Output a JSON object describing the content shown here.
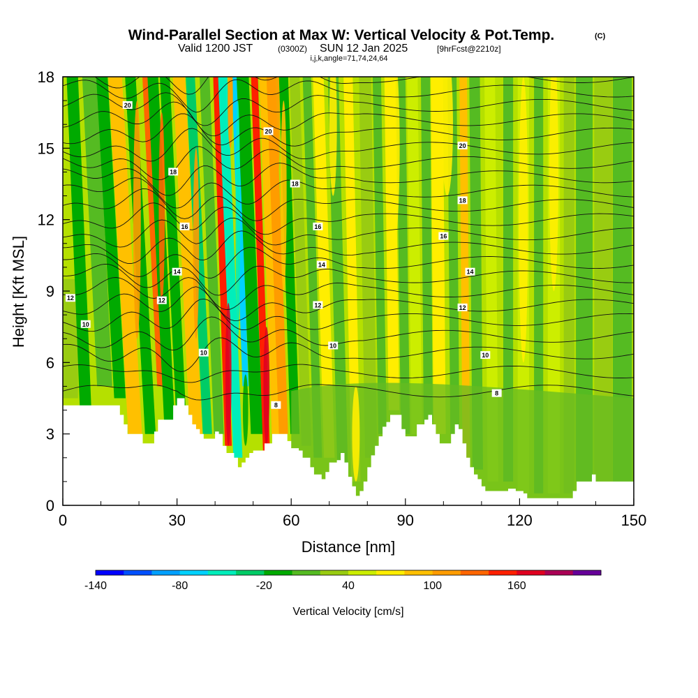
{
  "chart_data": {
    "type": "heatmap",
    "title": "Wind-Parallel Section at Max W: Vertical Velocity & Pot.Temp.",
    "title_mark": "(C)",
    "subtitle_a": "Valid 1200 JST",
    "subtitle_b": "(0300Z)",
    "subtitle_c": "SUN 12 Jan 2025",
    "subtitle_d": "[9hrFcst@2210z]",
    "subtitle_e": "i,j,k,angle=71,74,24,64",
    "xlabel": "Distance [nm]",
    "ylabel": "Height [Kft MSL]",
    "xlim": [
      0,
      150
    ],
    "ylim": [
      0,
      18
    ],
    "x_ticks": [
      "0",
      "30",
      "60",
      "90",
      "120",
      "150"
    ],
    "y_ticks": [
      "0",
      "3",
      "6",
      "9",
      "12",
      "15",
      "18"
    ],
    "colorbar": {
      "label": "Vertical Velocity [cm/s]",
      "min": -140,
      "step": 20,
      "tick_labels": [
        "-140",
        "-80",
        "-20",
        "40",
        "100",
        "160"
      ],
      "colors": [
        "#0000ff",
        "#0050ff",
        "#00a0ff",
        "#00d2ff",
        "#00eebb",
        "#00cc66",
        "#00aa00",
        "#55bb22",
        "#99cc11",
        "#ccee00",
        "#ffee00",
        "#ffc000",
        "#ff9c00",
        "#ff6600",
        "#ff2000",
        "#e00020",
        "#aa0055",
        "#660099"
      ]
    },
    "contour_labels": [
      {
        "text": "20",
        "x": 17,
        "y": 16.8
      },
      {
        "text": "20",
        "x": 54,
        "y": 15.7
      },
      {
        "text": "20",
        "x": 105,
        "y": 15.1
      },
      {
        "text": "18",
        "x": 29,
        "y": 14.0
      },
      {
        "text": "18",
        "x": 61,
        "y": 13.5
      },
      {
        "text": "18",
        "x": 105,
        "y": 12.8
      },
      {
        "text": "16",
        "x": 32,
        "y": 11.7
      },
      {
        "text": "16",
        "x": 67,
        "y": 11.7
      },
      {
        "text": "16",
        "x": 100,
        "y": 11.3
      },
      {
        "text": "14",
        "x": 30,
        "y": 9.8
      },
      {
        "text": "14",
        "x": 68,
        "y": 10.1
      },
      {
        "text": "14",
        "x": 107,
        "y": 9.8
      },
      {
        "text": "12",
        "x": 2,
        "y": 8.7
      },
      {
        "text": "12",
        "x": 26,
        "y": 8.6
      },
      {
        "text": "12",
        "x": 67,
        "y": 8.4
      },
      {
        "text": "12",
        "x": 105,
        "y": 8.3
      },
      {
        "text": "10",
        "x": 6,
        "y": 7.6
      },
      {
        "text": "10",
        "x": 37,
        "y": 6.4
      },
      {
        "text": "10",
        "x": 71,
        "y": 6.7
      },
      {
        "text": "10",
        "x": 111,
        "y": 6.3
      },
      {
        "text": "8",
        "x": 56,
        "y": 4.2
      },
      {
        "text": "8",
        "x": 114,
        "y": 4.7
      }
    ],
    "terrain_height": [
      [
        0,
        4.2
      ],
      [
        8,
        4.2
      ],
      [
        14,
        4.2
      ],
      [
        15,
        3.8
      ],
      [
        16,
        3.4
      ],
      [
        17,
        3.0
      ],
      [
        20,
        3.0
      ],
      [
        21,
        2.6
      ],
      [
        23,
        2.6
      ],
      [
        24,
        3.1
      ],
      [
        25,
        3.6
      ],
      [
        27,
        3.6
      ],
      [
        29,
        4.2
      ],
      [
        30,
        4.5
      ],
      [
        32,
        4.2
      ],
      [
        33,
        3.8
      ],
      [
        34,
        3.4
      ],
      [
        35,
        3.2
      ],
      [
        36,
        3.0
      ],
      [
        37,
        2.8
      ],
      [
        39,
        2.8
      ],
      [
        40,
        3.1
      ],
      [
        41,
        3.0
      ],
      [
        42,
        2.5
      ],
      [
        43,
        2.2
      ],
      [
        45,
        2.0
      ],
      [
        46,
        1.6
      ],
      [
        47,
        1.8
      ],
      [
        48,
        2.0
      ],
      [
        49,
        2.2
      ],
      [
        50,
        2.3
      ],
      [
        52,
        2.3
      ],
      [
        53,
        2.6
      ],
      [
        55,
        3.0
      ],
      [
        58,
        3.0
      ],
      [
        59,
        2.7
      ],
      [
        60,
        2.4
      ],
      [
        62,
        2.3
      ],
      [
        63,
        2.0
      ],
      [
        65,
        1.6
      ],
      [
        66,
        1.3
      ],
      [
        68,
        1.1
      ],
      [
        69,
        1.4
      ],
      [
        70,
        1.8
      ],
      [
        72,
        1.9
      ],
      [
        73,
        2.2
      ],
      [
        74,
        1.8
      ],
      [
        75,
        1.2
      ],
      [
        76,
        0.8
      ],
      [
        77,
        0.4
      ],
      [
        78,
        0.6
      ],
      [
        79,
        1.0
      ],
      [
        80,
        1.6
      ],
      [
        81,
        2.1
      ],
      [
        82,
        2.5
      ],
      [
        83,
        2.9
      ],
      [
        84,
        3.3
      ],
      [
        85,
        3.5
      ],
      [
        86,
        3.8
      ],
      [
        88,
        3.8
      ],
      [
        89,
        3.2
      ],
      [
        90,
        2.9
      ],
      [
        92,
        2.9
      ],
      [
        93,
        3.4
      ],
      [
        95,
        3.6
      ],
      [
        96,
        3.8
      ],
      [
        97,
        3.4
      ],
      [
        98,
        3.0
      ],
      [
        99,
        2.6
      ],
      [
        101,
        2.6
      ],
      [
        102,
        3.0
      ],
      [
        103,
        3.4
      ],
      [
        104,
        3.2
      ],
      [
        105,
        2.6
      ],
      [
        106,
        2.0
      ],
      [
        107,
        1.6
      ],
      [
        108,
        1.3
      ],
      [
        109,
        1.1
      ],
      [
        110,
        0.8
      ],
      [
        111,
        0.6
      ],
      [
        114,
        0.6
      ],
      [
        117,
        0.7
      ],
      [
        119,
        0.6
      ],
      [
        121,
        0.5
      ],
      [
        122,
        0.3
      ],
      [
        133,
        0.3
      ],
      [
        134,
        0.6
      ],
      [
        135,
        1.0
      ],
      [
        139,
        1.3
      ],
      [
        140,
        1.0
      ],
      [
        150,
        1.0
      ]
    ]
  }
}
